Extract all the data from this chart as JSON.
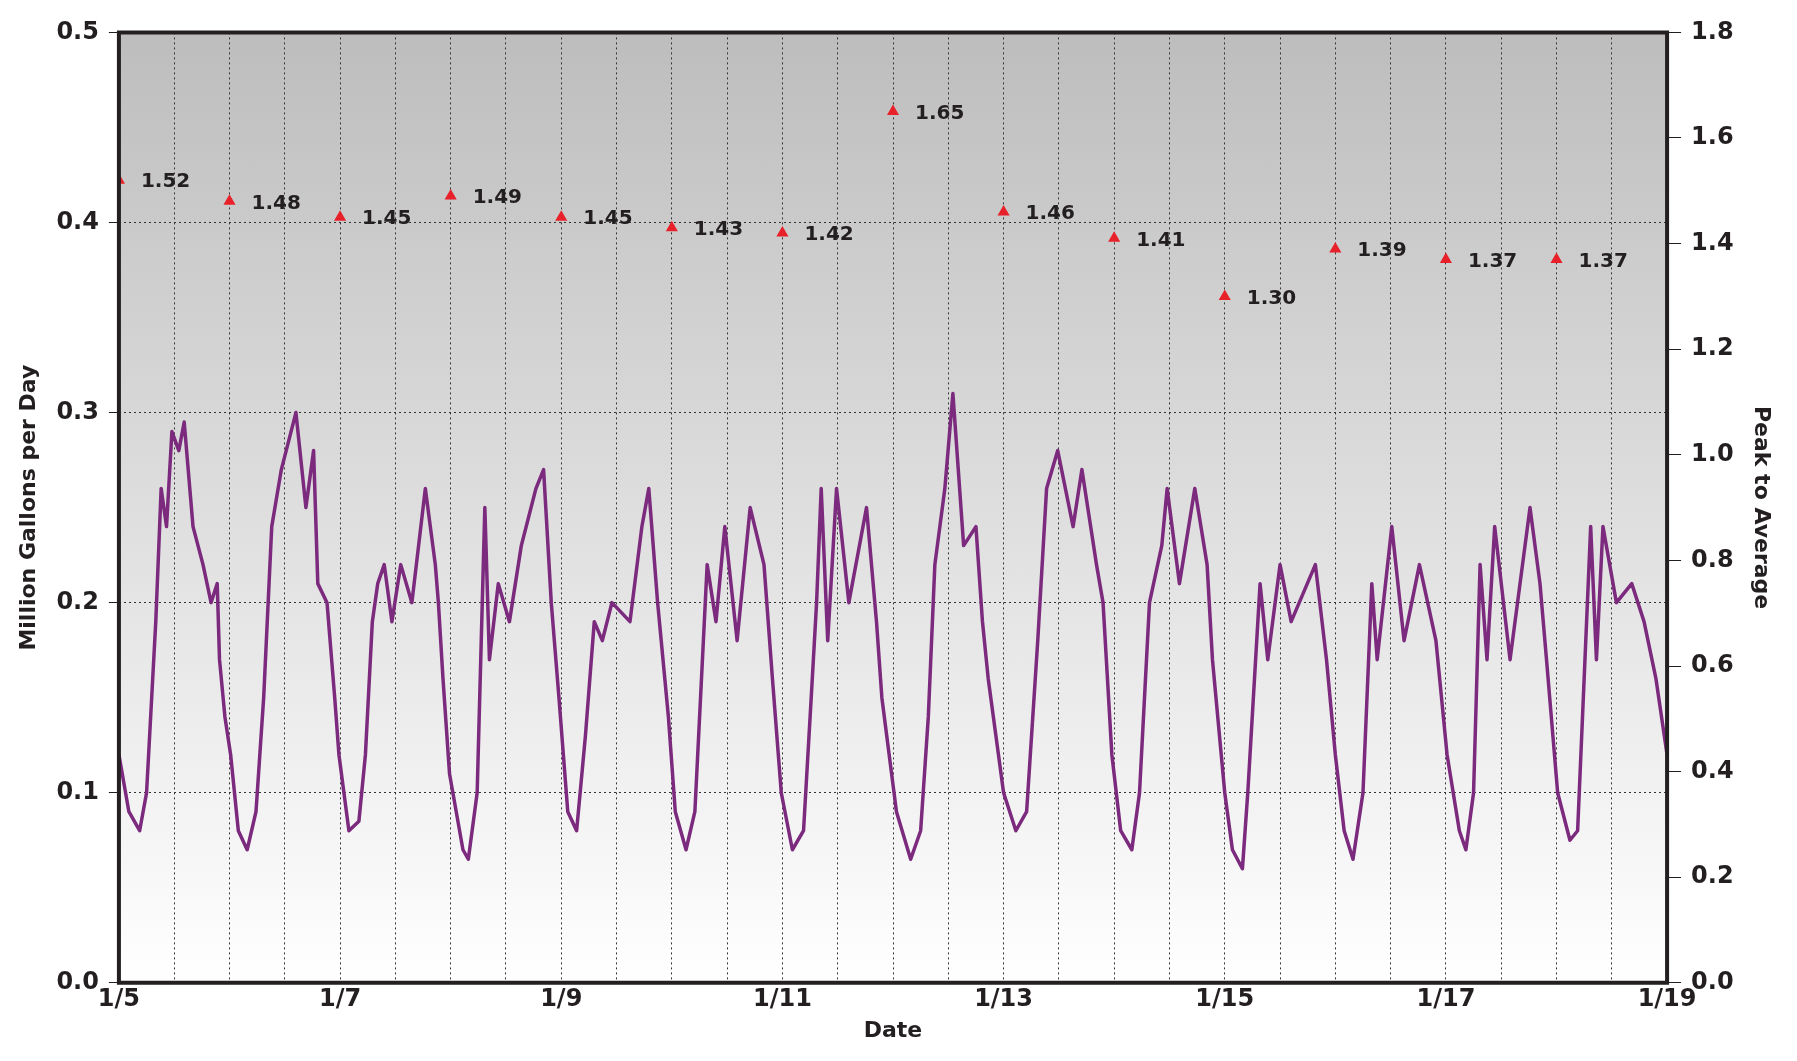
{
  "chart_data": {
    "type": "line",
    "xlabel": "Date",
    "ylabel": "Million Gallons per Day",
    "y2label": "Peak to Average",
    "legend": false,
    "grid": true,
    "xlim": [
      "--01-05",
      "--01-19"
    ],
    "xticks": [
      {
        "value": "--01-05",
        "label": "1/5"
      },
      {
        "value": "--01-05T12:00",
        "label": null
      },
      {
        "value": "--01-06",
        "label": null
      },
      {
        "value": "--01-06T12:00",
        "label": null
      },
      {
        "value": "--01-07",
        "label": "1/7"
      },
      {
        "value": "--01-07T12:00",
        "label": null
      },
      {
        "value": "--01-08",
        "label": null
      },
      {
        "value": "--01-08T12:00",
        "label": null
      },
      {
        "value": "--01-09",
        "label": "1/9"
      },
      {
        "value": "--01-09T12:00",
        "label": null
      },
      {
        "value": "--01-10",
        "label": null
      },
      {
        "value": "--01-10T12:00",
        "label": null
      },
      {
        "value": "--01-11",
        "label": "1/11"
      },
      {
        "value": "--01-11T12:00",
        "label": null
      },
      {
        "value": "--01-12",
        "label": null
      },
      {
        "value": "--01-12T12:00",
        "label": null
      },
      {
        "value": "--01-13",
        "label": "1/13"
      },
      {
        "value": "--01-13T12:00",
        "label": null
      },
      {
        "value": "--01-14",
        "label": null
      },
      {
        "value": "--01-14T12:00",
        "label": null
      },
      {
        "value": "--01-15",
        "label": "1/15"
      },
      {
        "value": "--01-15T12:00",
        "label": null
      },
      {
        "value": "--01-16",
        "label": null
      },
      {
        "value": "--01-16T12:00",
        "label": null
      },
      {
        "value": "--01-17",
        "label": "1/17"
      },
      {
        "value": "--01-17T12:00",
        "label": null
      },
      {
        "value": "--01-18",
        "label": null
      },
      {
        "value": "--01-18T12:00",
        "label": null
      },
      {
        "value": "--01-19",
        "label": "1/19"
      }
    ],
    "ylim": [
      0,
      0.5
    ],
    "yticks": [
      {
        "value": 0,
        "label": "0.0"
      },
      {
        "value": 0.1,
        "label": "0.1"
      },
      {
        "value": 0.2,
        "label": "0.2"
      },
      {
        "value": 0.3,
        "label": "0.3"
      },
      {
        "value": 0.4,
        "label": "0.4"
      },
      {
        "value": 0.5,
        "label": "0.5"
      }
    ],
    "y2lim": [
      0,
      1.8
    ],
    "y2ticks": [
      {
        "value": 0,
        "label": "0.0"
      },
      {
        "value": 0.2,
        "label": "0.2"
      },
      {
        "value": 0.4,
        "label": "0.4"
      },
      {
        "value": 0.6,
        "label": "0.6"
      },
      {
        "value": 0.8,
        "label": "0.8"
      },
      {
        "value": 1,
        "label": "1.0"
      },
      {
        "value": 1.2,
        "label": "1.2"
      },
      {
        "value": 1.4,
        "label": "1.4"
      },
      {
        "value": 1.6,
        "label": "1.6"
      },
      {
        "value": 1.8,
        "label": "1.8"
      }
    ],
    "series": [
      {
        "color": "#7b2a7d",
        "marker": "none",
        "line_style": "solid",
        "x": [
          "--01-05T00:00",
          "--01-05T02:10",
          "--01-05T04:30",
          "--01-05T06:00",
          "--01-05T08:00",
          "--01-05T09:10",
          "--01-05T10:20",
          "--01-05T11:30",
          "--01-05T13:00",
          "--01-05T14:10",
          "--01-05T16:05",
          "--01-05T18:15",
          "--01-05T20:00",
          "--01-05T21:20",
          "--01-05T21:50",
          "--01-05T23:00",
          "--01-06T00:15",
          "--01-06T01:55",
          "--01-06T03:50",
          "--01-06T05:45",
          "--01-06T07:25",
          "--01-06T09:10",
          "--01-06T11:15",
          "--01-06T14:25",
          "--01-06T16:35",
          "--01-06T18:15",
          "--01-06T19:10",
          "--01-06T21:10",
          "--01-06T22:50",
          "--01-06T23:45",
          "--01-07T01:55",
          "--01-07T04:05",
          "--01-07T05:30",
          "--01-07T07:00",
          "--01-07T08:10",
          "--01-07T09:35",
          "--01-07T11:15",
          "--01-07T13:10",
          "--01-07T15:35",
          "--01-07T18:30",
          "--01-07T20:40",
          "--01-07T21:20",
          "--01-07T22:20",
          "--01-07T23:45",
          "--01-08T02:40",
          "--01-08T03:50",
          "--01-08T05:45",
          "--01-08T07:25",
          "--01-08T08:25",
          "--01-08T10:20",
          "--01-08T12:45",
          "--01-08T15:20",
          "--01-08T18:30",
          "--01-08T20:10",
          "--01-08T21:50",
          "--01-08T23:30",
          "--01-09T01:25",
          "--01-09T03:20",
          "--01-09T05:15",
          "--01-09T07:10",
          "--01-09T08:55",
          "--01-09T11:00",
          "--01-09T14:55",
          "--01-09T17:30",
          "--01-09T19:00",
          "--01-09T20:55",
          "--01-09T23:15",
          "--01-10T00:45",
          "--01-10T03:05",
          "--01-10T05:00",
          "--01-10T07:40",
          "--01-10T09:35",
          "--01-10T11:30",
          "--01-10T14:10",
          "--01-10T17:00",
          "--01-10T20:00",
          "--01-10T21:50",
          "--01-10T23:45",
          "--01-11T02:10",
          "--01-11T04:35",
          "--01-11T06:15",
          "--01-11T07:25",
          "--01-11T08:25",
          "--01-11T09:50",
          "--01-11T11:45",
          "--01-11T14:25",
          "--01-11T18:15",
          "--01-11T20:25",
          "--01-11T21:35",
          "--01-12T00:45",
          "--01-12T03:50",
          "--01-12T06:00",
          "--01-12T07:40",
          "--01-12T09:05",
          "--01-12T11:15",
          "--01-12T13:00",
          "--01-12T15:20",
          "--01-12T18:00",
          "--01-12T19:25",
          "--01-12T20:40",
          "--01-13T00:00",
          "--01-13T02:40",
          "--01-13T05:00",
          "--01-13T07:25",
          "--01-13T09:20",
          "--01-13T11:45",
          "--01-13T15:05",
          "--01-13T17:00",
          "--01-13T20:10",
          "--01-13T21:35",
          "--01-13T23:30",
          "--01-14T01:25",
          "--01-14T03:50",
          "--01-14T05:30",
          "--01-14T07:40",
          "--01-14T10:20",
          "--01-14T11:30",
          "--01-14T14:10",
          "--01-14T17:30",
          "--01-14T20:10",
          "--01-14T21:20",
          "--01-15T00:00",
          "--01-15T01:40",
          "--01-15T03:50",
          "--01-15T05:00",
          "--01-15T07:40",
          "--01-15T09:20",
          "--01-15T12:00",
          "--01-15T14:25",
          "--01-15T19:40",
          "--01-15T22:05",
          "--01-16T00:00",
          "--01-16T01:55",
          "--01-16T03:50",
          "--01-16T06:00",
          "--01-16T07:55",
          "--01-16T09:05",
          "--01-16T12:15",
          "--01-16T14:55",
          "--01-16T18:15",
          "--01-16T21:50",
          "--01-17T00:15",
          "--01-17T02:55",
          "--01-17T04:20",
          "--01-17T06:00",
          "--01-17T07:25",
          "--01-17T08:55",
          "--01-17T10:35",
          "--01-17T13:55",
          "--01-17T18:15",
          "--01-17T20:25",
          "--01-17T21:50",
          "--01-18T00:15",
          "--01-18T02:55",
          "--01-18T04:35",
          "--01-18T07:25",
          "--01-18T08:40",
          "--01-18T10:05",
          "--01-18T13:00",
          "--01-18T16:20",
          "--01-18T19:00",
          "--01-18T21:35",
          "--01-19T00:00"
        ],
        "values": [
          0.12,
          0.09,
          0.08,
          0.1,
          0.19,
          0.26,
          0.24,
          0.29,
          0.28,
          0.295,
          0.24,
          0.22,
          0.2,
          0.21,
          0.17,
          0.14,
          0.12,
          0.08,
          0.07,
          0.09,
          0.15,
          0.24,
          0.27,
          0.3,
          0.25,
          0.28,
          0.21,
          0.2,
          0.15,
          0.12,
          0.08,
          0.085,
          0.12,
          0.19,
          0.21,
          0.22,
          0.19,
          0.22,
          0.2,
          0.26,
          0.22,
          0.2,
          0.16,
          0.11,
          0.07,
          0.065,
          0.1,
          0.25,
          0.17,
          0.21,
          0.19,
          0.23,
          0.26,
          0.27,
          0.2,
          0.15,
          0.09,
          0.08,
          0.13,
          0.19,
          0.18,
          0.2,
          0.19,
          0.24,
          0.26,
          0.2,
          0.14,
          0.09,
          0.07,
          0.09,
          0.22,
          0.19,
          0.24,
          0.18,
          0.25,
          0.22,
          0.16,
          0.1,
          0.07,
          0.08,
          0.15,
          0.2,
          0.26,
          0.18,
          0.26,
          0.2,
          0.25,
          0.19,
          0.15,
          0.09,
          0.065,
          0.08,
          0.14,
          0.22,
          0.26,
          0.31,
          0.23,
          0.24,
          0.19,
          0.16,
          0.1,
          0.08,
          0.09,
          0.18,
          0.26,
          0.28,
          0.24,
          0.27,
          0.22,
          0.2,
          0.12,
          0.08,
          0.07,
          0.1,
          0.2,
          0.23,
          0.26,
          0.21,
          0.26,
          0.22,
          0.17,
          0.1,
          0.07,
          0.06,
          0.1,
          0.21,
          0.17,
          0.22,
          0.19,
          0.22,
          0.17,
          0.12,
          0.08,
          0.065,
          0.1,
          0.21,
          0.17,
          0.24,
          0.18,
          0.22,
          0.18,
          0.12,
          0.08,
          0.07,
          0.1,
          0.22,
          0.17,
          0.24,
          0.17,
          0.25,
          0.21,
          0.17,
          0.1,
          0.075,
          0.08,
          0.24,
          0.17,
          0.24,
          0.2,
          0.21,
          0.19,
          0.16,
          0.12
        ]
      },
      {
        "type": "scatter",
        "axis": "y2",
        "color": "#e8202a",
        "marker": "triangle",
        "x": [
          "--01-05",
          "--01-06",
          "--01-07",
          "--01-08",
          "--01-09",
          "--01-10",
          "--01-11",
          "--01-12",
          "--01-13",
          "--01-14",
          "--01-15",
          "--01-16",
          "--01-17",
          "--01-18"
        ],
        "values": [
          1.52,
          1.48,
          1.45,
          1.49,
          1.45,
          1.43,
          1.42,
          1.65,
          1.46,
          1.41,
          1.3,
          1.39,
          1.37,
          1.37
        ],
        "value_labels": [
          "1.52",
          "1.48",
          "1.45",
          "1.49",
          "1.45",
          "1.43",
          "1.42",
          "1.65",
          "1.46",
          "1.41",
          "1.30",
          "1.39",
          "1.37",
          "1.37"
        ]
      }
    ]
  }
}
